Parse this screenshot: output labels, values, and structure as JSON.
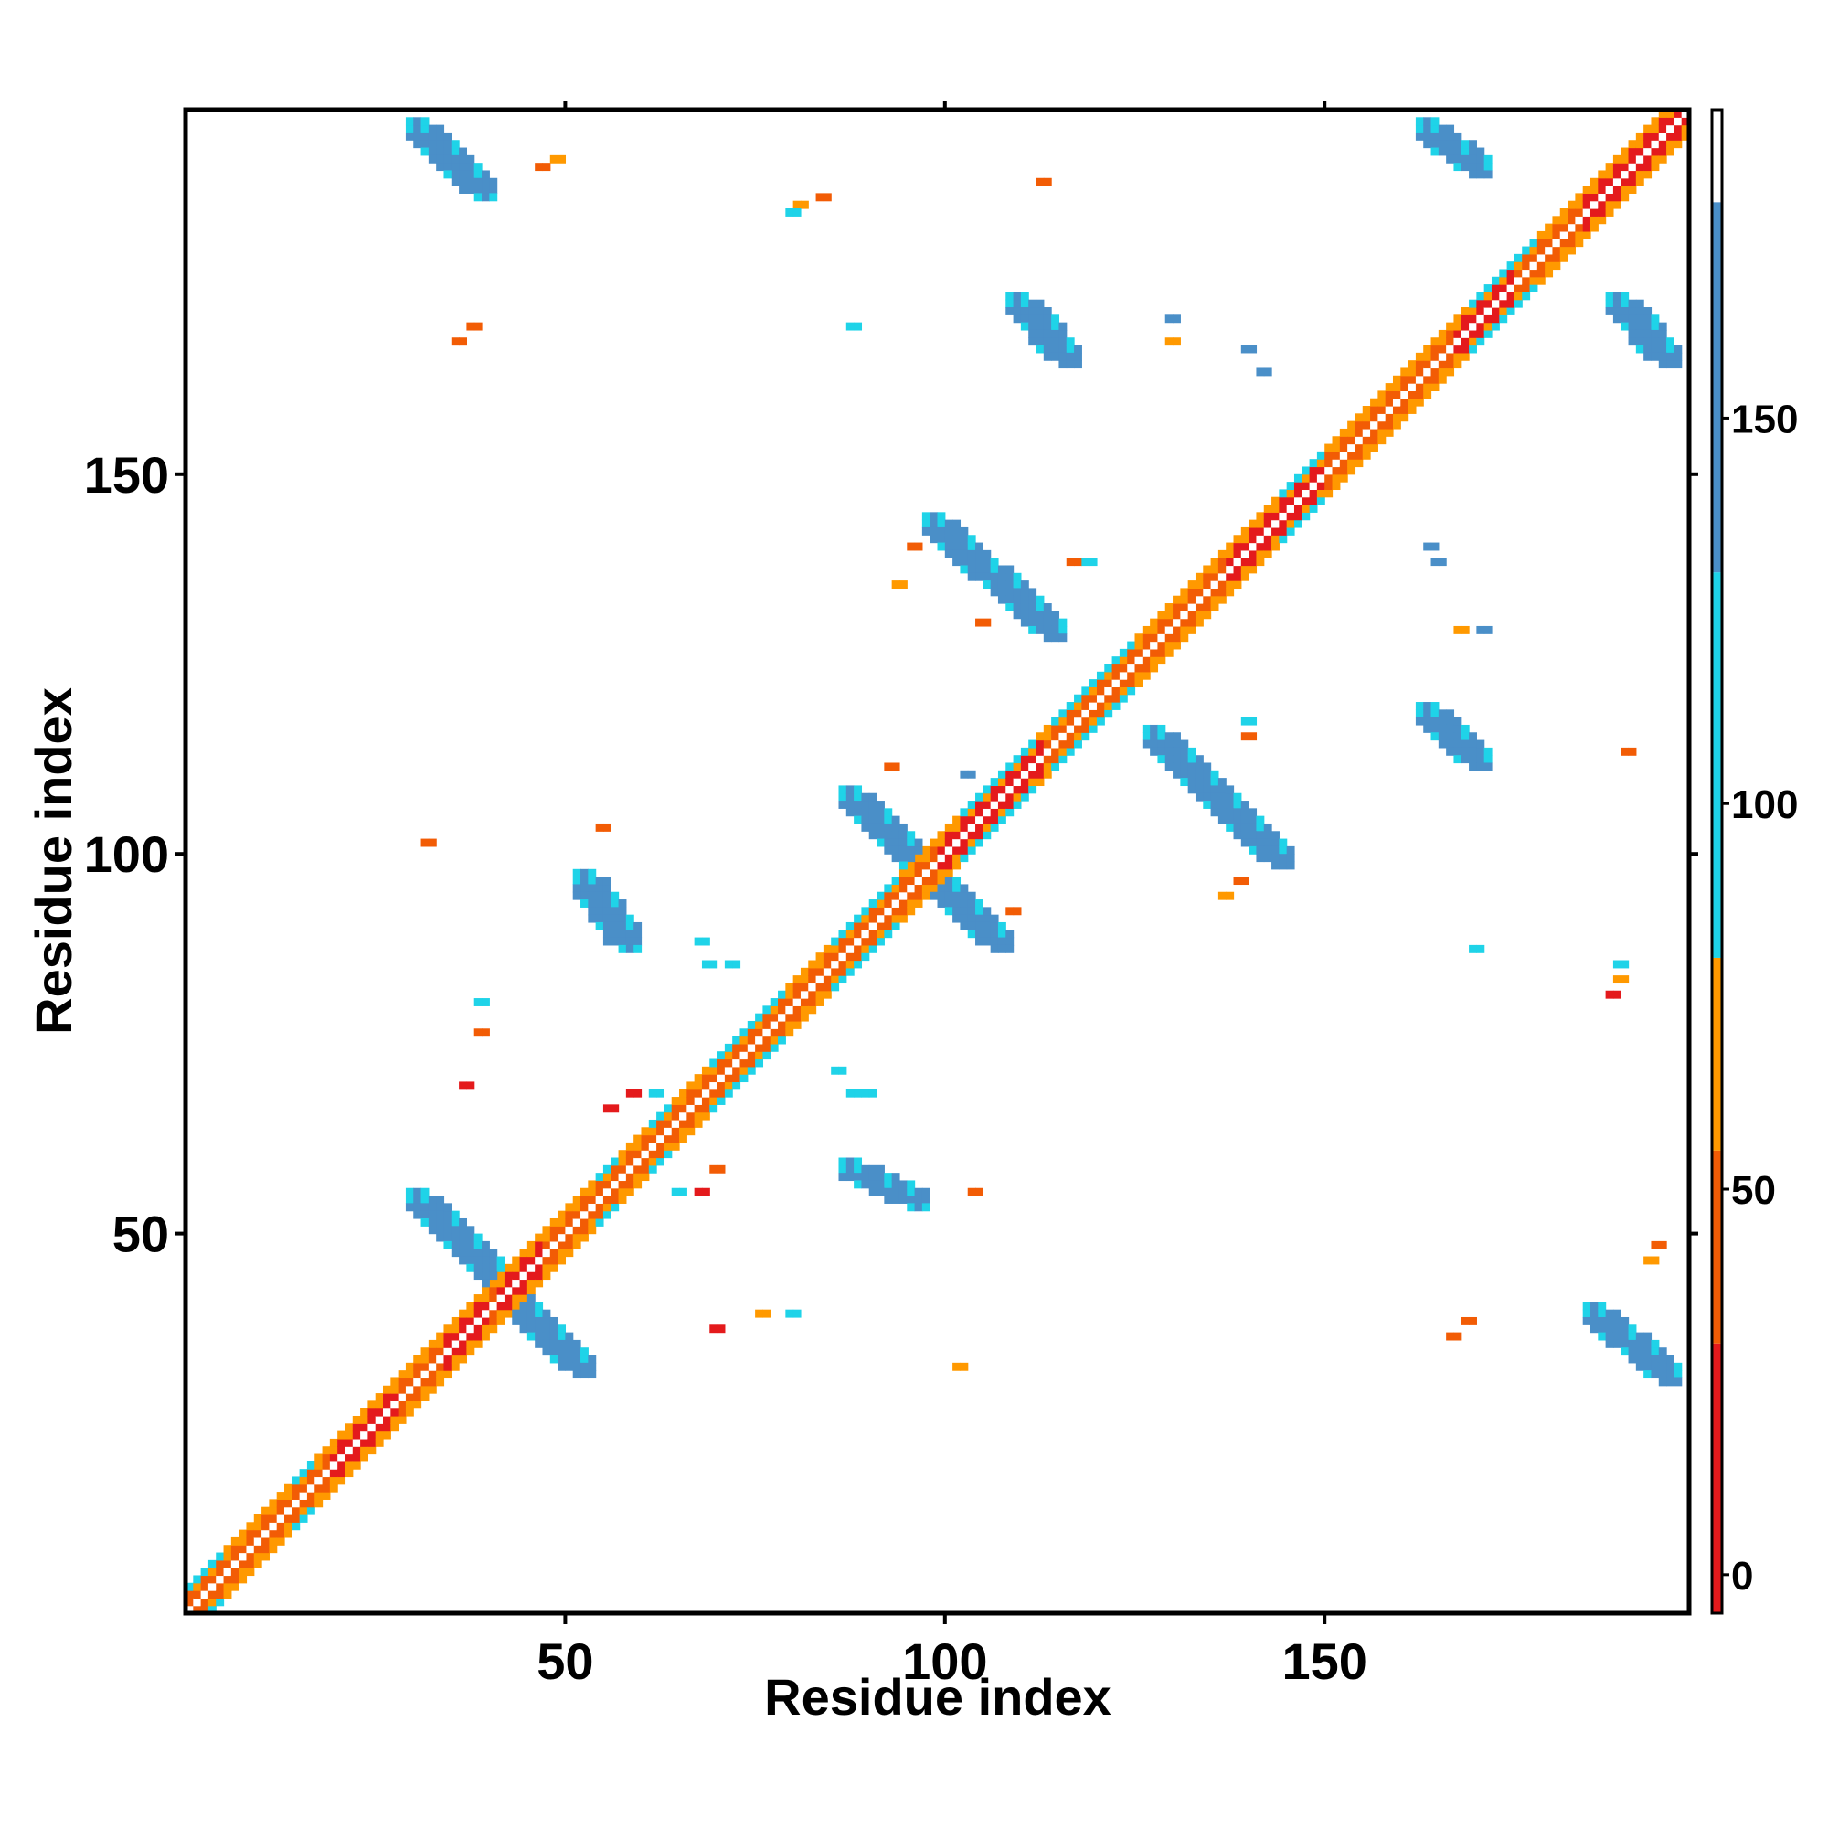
{
  "chart_data": {
    "type": "heatmap",
    "title": "",
    "xlabel": "Residue index",
    "ylabel": "Residue index",
    "xlim": [
      0,
      198
    ],
    "ylim": [
      0,
      198
    ],
    "x_ticks": [
      50,
      100,
      150
    ],
    "y_ticks": [
      50,
      100,
      150
    ],
    "x_tick_labels": [
      "50",
      "100",
      "150"
    ],
    "y_tick_labels": [
      "50",
      "100",
      "150"
    ],
    "colorbar": {
      "range": [
        -5,
        190
      ],
      "ticks": [
        0,
        50,
        100,
        150
      ],
      "tick_labels": [
        "0",
        "50",
        "100",
        "150"
      ],
      "bands": [
        {
          "from": -5,
          "to": 30,
          "color": "#e41a1c"
        },
        {
          "from": 30,
          "to": 55,
          "color": "#f25c05"
        },
        {
          "from": 55,
          "to": 80,
          "color": "#ff9900"
        },
        {
          "from": 80,
          "to": 130,
          "color": "#1fd3e8"
        },
        {
          "from": 130,
          "to": 178,
          "color": "#4a8fc8"
        },
        {
          "from": 178,
          "to": 190,
          "color": "#ffffff"
        }
      ]
    },
    "color_key": {
      "red": "#e41a1c",
      "dark_orange": "#f25c05",
      "orange": "#ff9900",
      "cyan": "#1fd3e8",
      "blue": "#4a8fc8"
    },
    "diagonal": {
      "from": 1,
      "to": 198,
      "red_segments": [
        [
          20,
          28
        ],
        [
          35,
          40
        ],
        [
          42,
          47
        ],
        [
          100,
          113
        ],
        [
          138,
          150
        ],
        [
          168,
          175
        ],
        [
          185,
          198
        ]
      ],
      "cyan_segments": [
        [
          1,
          5
        ],
        [
          15,
          17
        ],
        [
          55,
          57
        ],
        [
          62,
          64
        ],
        [
          70,
          79
        ],
        [
          86,
          94
        ],
        [
          103,
          112
        ],
        [
          115,
          125
        ],
        [
          145,
          150
        ],
        [
          170,
          178
        ]
      ]
    },
    "stripes": [
      {
        "from": [
          31,
          196
        ],
        "to": [
          40,
          187
        ],
        "color": "blue"
      },
      {
        "from": [
          110,
          173
        ],
        "to": [
          117,
          165
        ],
        "color": "blue"
      },
      {
        "from": [
          164,
          196
        ],
        "to": [
          171,
          190
        ],
        "color": "blue"
      },
      {
        "from": [
          189,
          173
        ],
        "to": [
          196,
          165
        ],
        "color": "blue"
      },
      {
        "from": [
          99,
          144
        ],
        "to": [
          115,
          129
        ],
        "color": "blue"
      },
      {
        "from": [
          164,
          119
        ],
        "to": [
          171,
          112
        ],
        "color": "blue"
      },
      {
        "from": [
          128,
          116
        ],
        "to": [
          145,
          99
        ],
        "color": "blue"
      },
      {
        "from": [
          88,
          108
        ],
        "to": [
          108,
          88
        ],
        "color": "blue"
      },
      {
        "from": [
          53,
          97
        ],
        "to": [
          59,
          88
        ],
        "color": "blue"
      },
      {
        "from": [
          88,
          59
        ],
        "to": [
          97,
          54
        ],
        "color": "blue"
      },
      {
        "from": [
          31,
          55
        ],
        "to": [
          53,
          32
        ],
        "color": "blue"
      },
      {
        "from": [
          186,
          40
        ],
        "to": [
          196,
          31
        ],
        "color": "blue"
      }
    ],
    "patches": [
      {
        "x": 47,
        "y": 191,
        "c": "dark_orange"
      },
      {
        "x": 49,
        "y": 192,
        "c": "orange"
      },
      {
        "x": 81,
        "y": 186,
        "c": "orange"
      },
      {
        "x": 80,
        "y": 185,
        "c": "cyan"
      },
      {
        "x": 84,
        "y": 187,
        "c": "dark_orange"
      },
      {
        "x": 113,
        "y": 189,
        "c": "dark_orange"
      },
      {
        "x": 36,
        "y": 168,
        "c": "dark_orange"
      },
      {
        "x": 38,
        "y": 170,
        "c": "dark_orange"
      },
      {
        "x": 88,
        "y": 170,
        "c": "cyan"
      },
      {
        "x": 130,
        "y": 171,
        "c": "blue"
      },
      {
        "x": 130,
        "y": 168,
        "c": "orange"
      },
      {
        "x": 140,
        "y": 167,
        "c": "blue"
      },
      {
        "x": 142,
        "y": 164,
        "c": "blue"
      },
      {
        "x": 96,
        "y": 141,
        "c": "dark_orange"
      },
      {
        "x": 94,
        "y": 136,
        "c": "orange"
      },
      {
        "x": 105,
        "y": 131,
        "c": "dark_orange"
      },
      {
        "x": 117,
        "y": 139,
        "c": "dark_orange"
      },
      {
        "x": 119,
        "y": 139,
        "c": "cyan"
      },
      {
        "x": 164,
        "y": 141,
        "c": "blue"
      },
      {
        "x": 165,
        "y": 139,
        "c": "blue"
      },
      {
        "x": 168,
        "y": 130,
        "c": "orange"
      },
      {
        "x": 171,
        "y": 130,
        "c": "blue"
      },
      {
        "x": 140,
        "y": 118,
        "c": "cyan"
      },
      {
        "x": 140,
        "y": 116,
        "c": "dark_orange"
      },
      {
        "x": 93,
        "y": 112,
        "c": "dark_orange"
      },
      {
        "x": 103,
        "y": 111,
        "c": "blue"
      },
      {
        "x": 105,
        "y": 108,
        "c": "cyan"
      },
      {
        "x": 108,
        "y": 106,
        "c": "cyan"
      },
      {
        "x": 190,
        "y": 114,
        "c": "dark_orange"
      },
      {
        "x": 32,
        "y": 102,
        "c": "dark_orange"
      },
      {
        "x": 55,
        "y": 104,
        "c": "dark_orange"
      },
      {
        "x": 109,
        "y": 93,
        "c": "dark_orange"
      },
      {
        "x": 137,
        "y": 95,
        "c": "orange"
      },
      {
        "x": 139,
        "y": 97,
        "c": "dark_orange"
      },
      {
        "x": 170,
        "y": 88,
        "c": "cyan"
      },
      {
        "x": 68,
        "y": 89,
        "c": "cyan"
      },
      {
        "x": 69,
        "y": 86,
        "c": "cyan"
      },
      {
        "x": 72,
        "y": 86,
        "c": "cyan"
      },
      {
        "x": 188,
        "y": 82,
        "c": "red"
      },
      {
        "x": 189,
        "y": 84,
        "c": "orange"
      },
      {
        "x": 189,
        "y": 86,
        "c": "cyan"
      },
      {
        "x": 39,
        "y": 81,
        "c": "cyan"
      },
      {
        "x": 39,
        "y": 77,
        "c": "dark_orange"
      },
      {
        "x": 37,
        "y": 70,
        "c": "red"
      },
      {
        "x": 56,
        "y": 67,
        "c": "red"
      },
      {
        "x": 59,
        "y": 69,
        "c": "red"
      },
      {
        "x": 62,
        "y": 69,
        "c": "cyan"
      },
      {
        "x": 68,
        "y": 56,
        "c": "red"
      },
      {
        "x": 70,
        "y": 59,
        "c": "dark_orange"
      },
      {
        "x": 65,
        "y": 56,
        "c": "cyan"
      },
      {
        "x": 86,
        "y": 72,
        "c": "cyan"
      },
      {
        "x": 88,
        "y": 69,
        "c": "cyan"
      },
      {
        "x": 90,
        "y": 69,
        "c": "cyan"
      },
      {
        "x": 104,
        "y": 56,
        "c": "dark_orange"
      },
      {
        "x": 193,
        "y": 47,
        "c": "orange"
      },
      {
        "x": 194,
        "y": 49,
        "c": "dark_orange"
      },
      {
        "x": 70,
        "y": 38,
        "c": "red"
      },
      {
        "x": 76,
        "y": 40,
        "c": "orange"
      },
      {
        "x": 80,
        "y": 40,
        "c": "cyan"
      },
      {
        "x": 102,
        "y": 33,
        "c": "orange"
      },
      {
        "x": 167,
        "y": 37,
        "c": "dark_orange"
      },
      {
        "x": 169,
        "y": 39,
        "c": "dark_orange"
      }
    ]
  }
}
